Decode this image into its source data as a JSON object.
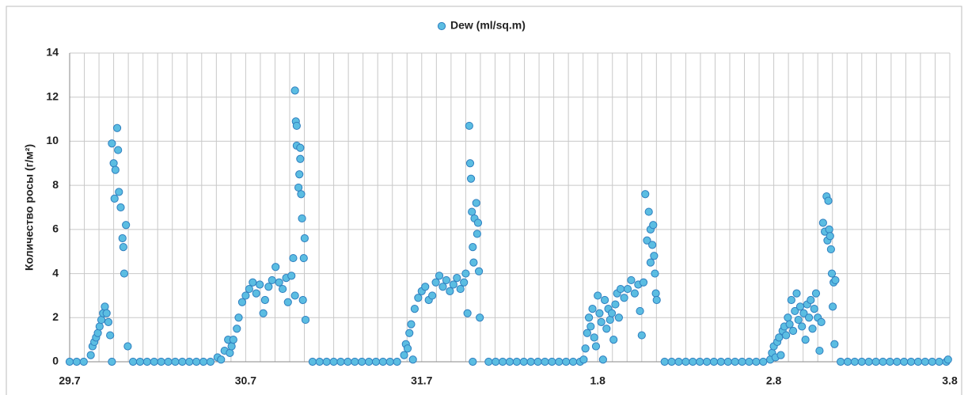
{
  "chart_data": {
    "type": "scatter",
    "y_label": "Количество росы (г/м²)",
    "series": [
      {
        "name": "Dew (ml/sq.m)",
        "color": "#5bbde2",
        "edge_color": "#2f7fbf",
        "values": [
          0,
          0,
          0,
          0,
          0,
          0,
          0,
          0,
          0,
          0,
          0,
          0,
          0,
          0,
          0,
          0,
          0,
          0,
          0,
          0,
          0,
          0,
          0,
          0,
          0,
          0,
          0,
          0,
          0,
          0,
          0,
          0,
          0,
          0,
          0,
          0,
          0,
          0,
          0,
          0,
          0,
          0,
          0,
          0,
          0,
          0,
          0,
          0,
          0,
          0,
          0,
          0,
          0,
          0,
          0,
          0,
          0,
          0,
          0,
          0,
          0,
          0,
          0,
          0,
          0,
          0,
          0,
          0,
          0,
          0,
          0,
          0,
          0,
          0.3,
          0.7,
          0.9,
          1.1,
          1.3,
          1.6,
          1.9,
          2.2,
          2.5,
          2.2,
          1.8,
          1.2,
          0,
          9.9,
          9.0,
          7.4,
          8.7,
          10.6,
          9.6,
          7.7,
          7.0,
          5.6,
          5.2,
          4.0,
          6.2,
          0.7,
          0.2,
          0.1,
          0.5,
          1.0,
          0.4,
          0.7,
          1.0,
          1.5,
          2.0,
          2.7,
          3.0,
          3.3,
          3.6,
          3.1,
          3.5,
          2.2,
          2.8,
          3.4,
          3.7,
          4.3,
          3.6,
          3.3,
          3.8,
          2.7,
          3.9,
          4.7,
          12.3,
          3.0,
          10.9,
          9.8,
          10.7,
          7.9,
          8.5,
          9.7,
          9.2,
          7.6,
          6.5,
          2.8,
          4.7,
          5.6,
          1.9,
          0.3,
          0.8,
          0.6,
          1.3,
          1.7,
          0.1,
          2.4,
          2.9,
          3.2,
          3.4,
          2.8,
          3.0,
          3.6,
          3.9,
          3.4,
          3.7,
          3.2,
          3.5,
          3.8,
          3.3,
          3.6,
          4.0,
          2.2,
          10.7,
          9.0,
          8.3,
          6.8,
          5.2,
          0,
          4.5,
          6.5,
          7.2,
          5.8,
          6.3,
          4.1,
          2.0,
          0.1,
          0.6,
          1.3,
          2.0,
          1.6,
          2.4,
          1.1,
          0.7,
          3.0,
          2.2,
          1.8,
          0.1,
          2.8,
          1.5,
          2.4,
          1.9,
          2.2,
          1.0,
          2.6,
          3.1,
          2.0,
          3.3,
          2.9,
          3.3,
          3.7,
          3.1,
          3.5,
          2.3,
          1.2,
          3.6,
          7.6,
          5.5,
          6.8,
          6.0,
          4.5,
          5.3,
          6.2,
          4.8,
          4.0,
          3.1,
          2.8,
          0.1,
          0.4,
          0.7,
          0.2,
          0.9,
          1.1,
          0.3,
          1.4,
          1.6,
          1.2,
          2.0,
          1.7,
          2.8,
          1.4,
          2.3,
          3.1,
          1.9,
          2.5,
          1.6,
          2.2,
          1.0,
          2.6,
          2.0,
          2.8,
          1.5,
          2.4,
          3.1,
          2.0,
          0.5,
          1.8,
          6.3,
          5.9,
          7.5,
          5.5,
          7.3,
          6.0,
          5.7,
          5.1,
          4.0,
          2.5,
          3.6,
          0.8,
          3.7,
          0.1
        ]
      }
    ],
    "x": [
      0,
      0.04,
      0.08,
      0.36,
      0.4,
      0.44,
      0.48,
      0.52,
      0.56,
      0.6,
      0.64,
      0.68,
      0.72,
      0.76,
      0.8,
      1.38,
      1.42,
      1.46,
      1.5,
      1.54,
      1.58,
      1.62,
      1.66,
      1.7,
      1.74,
      1.78,
      1.82,
      1.86,
      2.38,
      2.42,
      2.46,
      2.5,
      2.54,
      2.58,
      2.62,
      2.66,
      2.7,
      2.74,
      2.78,
      2.82,
      2.86,
      2.9,
      3.38,
      3.42,
      3.46,
      3.5,
      3.54,
      3.58,
      3.62,
      3.66,
      3.7,
      3.74,
      3.78,
      3.82,
      3.86,
      3.9,
      3.94,
      4.38,
      4.42,
      4.46,
      4.5,
      4.54,
      4.58,
      4.62,
      4.66,
      4.7,
      4.74,
      4.78,
      4.82,
      4.86,
      4.9,
      4.94,
      4.98,
      0.12,
      0.13,
      0.14,
      0.15,
      0.16,
      0.17,
      0.18,
      0.19,
      0.2,
      0.21,
      0.22,
      0.23,
      0.24,
      0.24,
      0.25,
      0.255,
      0.26,
      0.27,
      0.275,
      0.28,
      0.29,
      0.3,
      0.305,
      0.31,
      0.32,
      0.33,
      0.84,
      0.86,
      0.88,
      0.9,
      0.91,
      0.92,
      0.93,
      0.95,
      0.96,
      0.98,
      1.0,
      1.02,
      1.04,
      1.06,
      1.08,
      1.1,
      1.11,
      1.13,
      1.15,
      1.17,
      1.19,
      1.21,
      1.23,
      1.24,
      1.26,
      1.27,
      1.28,
      1.28,
      1.285,
      1.29,
      1.29,
      1.3,
      1.305,
      1.31,
      1.31,
      1.315,
      1.32,
      1.325,
      1.33,
      1.335,
      1.34,
      1.9,
      1.91,
      1.92,
      1.93,
      1.94,
      1.95,
      1.96,
      1.98,
      2.0,
      2.02,
      2.04,
      2.06,
      2.08,
      2.1,
      2.12,
      2.14,
      2.16,
      2.18,
      2.2,
      2.22,
      2.24,
      2.25,
      2.26,
      2.27,
      2.275,
      2.28,
      2.285,
      2.29,
      2.29,
      2.295,
      2.3,
      2.31,
      2.315,
      2.32,
      2.325,
      2.33,
      2.92,
      2.93,
      2.94,
      2.95,
      2.96,
      2.97,
      2.98,
      2.99,
      3.0,
      3.01,
      3.02,
      3.03,
      3.04,
      3.05,
      3.06,
      3.07,
      3.08,
      3.09,
      3.1,
      3.11,
      3.12,
      3.13,
      3.15,
      3.17,
      3.19,
      3.21,
      3.23,
      3.24,
      3.25,
      3.26,
      3.27,
      3.28,
      3.29,
      3.3,
      3.3,
      3.31,
      3.315,
      3.32,
      3.325,
      3.33,
      3.335,
      3.98,
      3.99,
      4.0,
      4.01,
      4.02,
      4.03,
      4.04,
      4.05,
      4.06,
      4.07,
      4.08,
      4.09,
      4.1,
      4.11,
      4.12,
      4.13,
      4.14,
      4.15,
      4.16,
      4.17,
      4.18,
      4.19,
      4.2,
      4.21,
      4.22,
      4.23,
      4.24,
      4.25,
      4.26,
      4.27,
      4.28,
      4.29,
      4.3,
      4.305,
      4.31,
      4.315,
      4.32,
      4.325,
      4.33,
      4.335,
      4.34,
      4.345,
      4.35,
      4.99
    ],
    "xlim": [
      0,
      5
    ],
    "xticks": [
      {
        "value": 0,
        "label": "29.7"
      },
      {
        "value": 1,
        "label": "30.7"
      },
      {
        "value": 2,
        "label": "31.7"
      },
      {
        "value": 3,
        "label": "1.8"
      },
      {
        "value": 4,
        "label": "2.8"
      },
      {
        "value": 5,
        "label": "3.8"
      }
    ],
    "x_minor_per_tick": 12,
    "ylim": [
      0,
      14
    ],
    "yticks": [
      0,
      2,
      4,
      6,
      8,
      10,
      12,
      14
    ],
    "grid": true,
    "legend": "top"
  }
}
